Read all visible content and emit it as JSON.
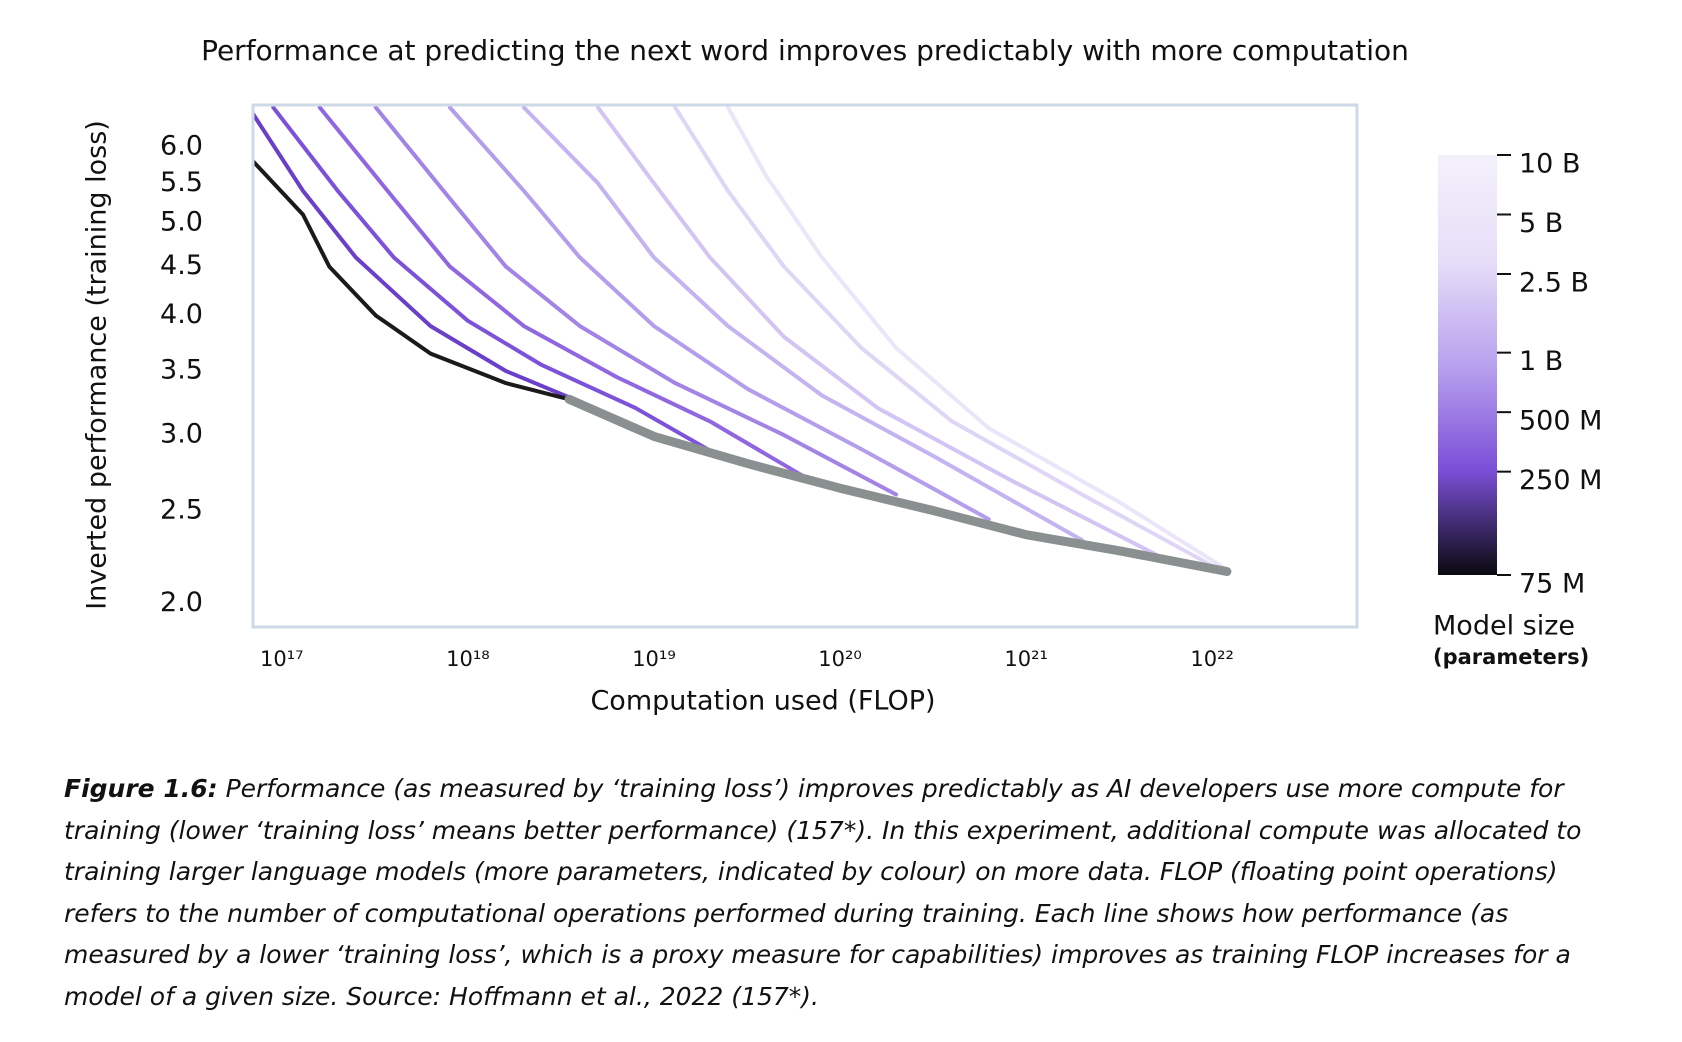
{
  "chart_data": {
    "type": "line",
    "title": "Performance at predicting the next word improves predictably with more computation",
    "x_label": "Computation used (FLOP)",
    "y_label": "Inverted performance (training loss)",
    "log_x": true,
    "log_y": true,
    "xlim": [
      7e+16,
      6e+22
    ],
    "ylim": [
      1.89,
      6.64
    ],
    "xticks": [
      {
        "value": 1e+17,
        "label": "10¹⁷"
      },
      {
        "value": 1e+18,
        "label": "10¹⁸"
      },
      {
        "value": 1e+19,
        "label": "10¹⁹"
      },
      {
        "value": 1e+20,
        "label": "10²⁰"
      },
      {
        "value": 1e+21,
        "label": "10²¹"
      },
      {
        "value": 1e+22,
        "label": "10²²"
      }
    ],
    "yticks": [
      {
        "value": 2,
        "label": "2.0"
      },
      {
        "value": 2.5,
        "label": "2.5"
      },
      {
        "value": 3,
        "label": "3.0"
      },
      {
        "value": 3.5,
        "label": "3.5"
      },
      {
        "value": 4,
        "label": "4.0"
      },
      {
        "value": 4.5,
        "label": "4.5"
      },
      {
        "value": 5,
        "label": "5.0"
      },
      {
        "value": 5.5,
        "label": "5.5"
      },
      {
        "value": 6,
        "label": "6.0"
      }
    ],
    "series": [
      {
        "color": "#ebe5fa",
        "x": [
          2.5e+19,
          4e+19,
          8e+19,
          2e+20,
          6.3e+20,
          3.2e+21,
          1.2e+22
        ],
        "values": [
          6.6,
          5.6,
          4.6,
          3.7,
          3.05,
          2.55,
          2.17
        ]
      },
      {
        "color": "#dfd6f7",
        "x": [
          1.3e+19,
          2.5e+19,
          5e+19,
          1.3e+20,
          4e+20,
          2e+21,
          1e+22
        ],
        "values": [
          6.6,
          5.4,
          4.5,
          3.7,
          3.1,
          2.6,
          2.19
        ]
      },
      {
        "color": "#d2c5f4",
        "x": [
          5e+18,
          1e+19,
          2e+19,
          5e+19,
          1.6e+20,
          8e+20,
          5e+21
        ],
        "values": [
          6.6,
          5.5,
          4.6,
          3.8,
          3.2,
          2.7,
          2.25
        ]
      },
      {
        "color": "#c4b3f1",
        "x": [
          2e+18,
          5e+18,
          1e+19,
          2.5e+19,
          8e+19,
          3.2e+20,
          2e+21
        ],
        "values": [
          6.6,
          5.5,
          4.6,
          3.9,
          3.3,
          2.85,
          2.33
        ]
      },
      {
        "color": "#b49ded",
        "x": [
          8e+17,
          2e+18,
          4e+18,
          1e+19,
          3.2e+19,
          1.3e+20,
          6.3e+20
        ],
        "values": [
          6.6,
          5.4,
          4.6,
          3.9,
          3.35,
          2.9,
          2.45
        ]
      },
      {
        "color": "#a283e6",
        "x": [
          3.2e+17,
          8e+17,
          1.6e+18,
          4e+18,
          1.3e+19,
          5e+19,
          2e+20
        ],
        "values": [
          6.6,
          5.3,
          4.5,
          3.9,
          3.4,
          3.0,
          2.6
        ]
      },
      {
        "color": "#9067e0",
        "x": [
          1.6e+17,
          4e+17,
          8e+17,
          2e+18,
          6.3e+18,
          2e+19,
          6.3e+19
        ],
        "values": [
          6.6,
          5.3,
          4.5,
          3.9,
          3.45,
          3.1,
          2.72
        ]
      },
      {
        "color": "#7d52db",
        "x": [
          9e+16,
          2e+17,
          4e+17,
          1e+18,
          2.5e+18,
          8e+18,
          2e+19
        ],
        "values": [
          6.6,
          5.4,
          4.6,
          3.95,
          3.55,
          3.2,
          2.89
        ]
      },
      {
        "color": "#6a3fc9",
        "x": [
          7e+16,
          1.3e+17,
          2.5e+17,
          6.3e+17,
          1.6e+18,
          4e+18,
          8e+18
        ],
        "values": [
          6.5,
          5.4,
          4.6,
          3.9,
          3.5,
          3.25,
          3.05
        ]
      },
      {
        "color": "#1a1a1a",
        "x": [
          7e+16,
          1.3e+17,
          1.8e+17,
          3.2e+17,
          6.3e+17,
          1.6e+18,
          3.5e+18
        ],
        "values": [
          5.8,
          5.1,
          4.5,
          4.0,
          3.65,
          3.4,
          3.27
        ]
      },
      {
        "color": "#8a9090",
        "frontier": true,
        "x": [
          3.5e+18,
          1e+19,
          3.2e+19,
          1e+20,
          3.2e+20,
          1e+21,
          3.2e+21,
          1.2e+22
        ],
        "values": [
          3.27,
          2.99,
          2.8,
          2.64,
          2.5,
          2.36,
          2.27,
          2.16
        ]
      }
    ],
    "colorbar": {
      "label": "Model size",
      "sublabel": "(parameters)",
      "log": true,
      "lim": [
        75000000.0,
        10000000000.0
      ],
      "colors": [
        "#0a0a0f",
        "#7b4fd8",
        "#b9a2ee",
        "#e6def8",
        "#f4f0fb"
      ],
      "ticks": [
        {
          "value": 10000000000.0,
          "label": "10 B"
        },
        {
          "value": 5000000000.0,
          "label": "5 B"
        },
        {
          "value": 2500000000.0,
          "label": "2.5 B"
        },
        {
          "value": 1000000000.0,
          "label": "1 B"
        },
        {
          "value": 500000000.0,
          "label": "500 M"
        },
        {
          "value": 250000000.0,
          "label": "250 M"
        },
        {
          "value": 75000000.0,
          "label": "75 M"
        }
      ]
    },
    "caption": {
      "label": "Figure 1.6:",
      "text": " Performance (as measured by ‘training loss’) improves predictably as AI developers use more compute for training (lower ‘training loss’ means better performance) (157*). In this experiment, additional compute was allocated to training larger language models (more parameters, indicated by colour) on more data. FLOP (floating point operations) refers to the number of computational operations performed during training. Each line shows how performance (as measured by a lower ‘training loss’, which is a proxy measure for capabilities) improves as training FLOP increases for a model of a given size. Source: Hoffmann et al., 2022 (157*)."
    }
  }
}
